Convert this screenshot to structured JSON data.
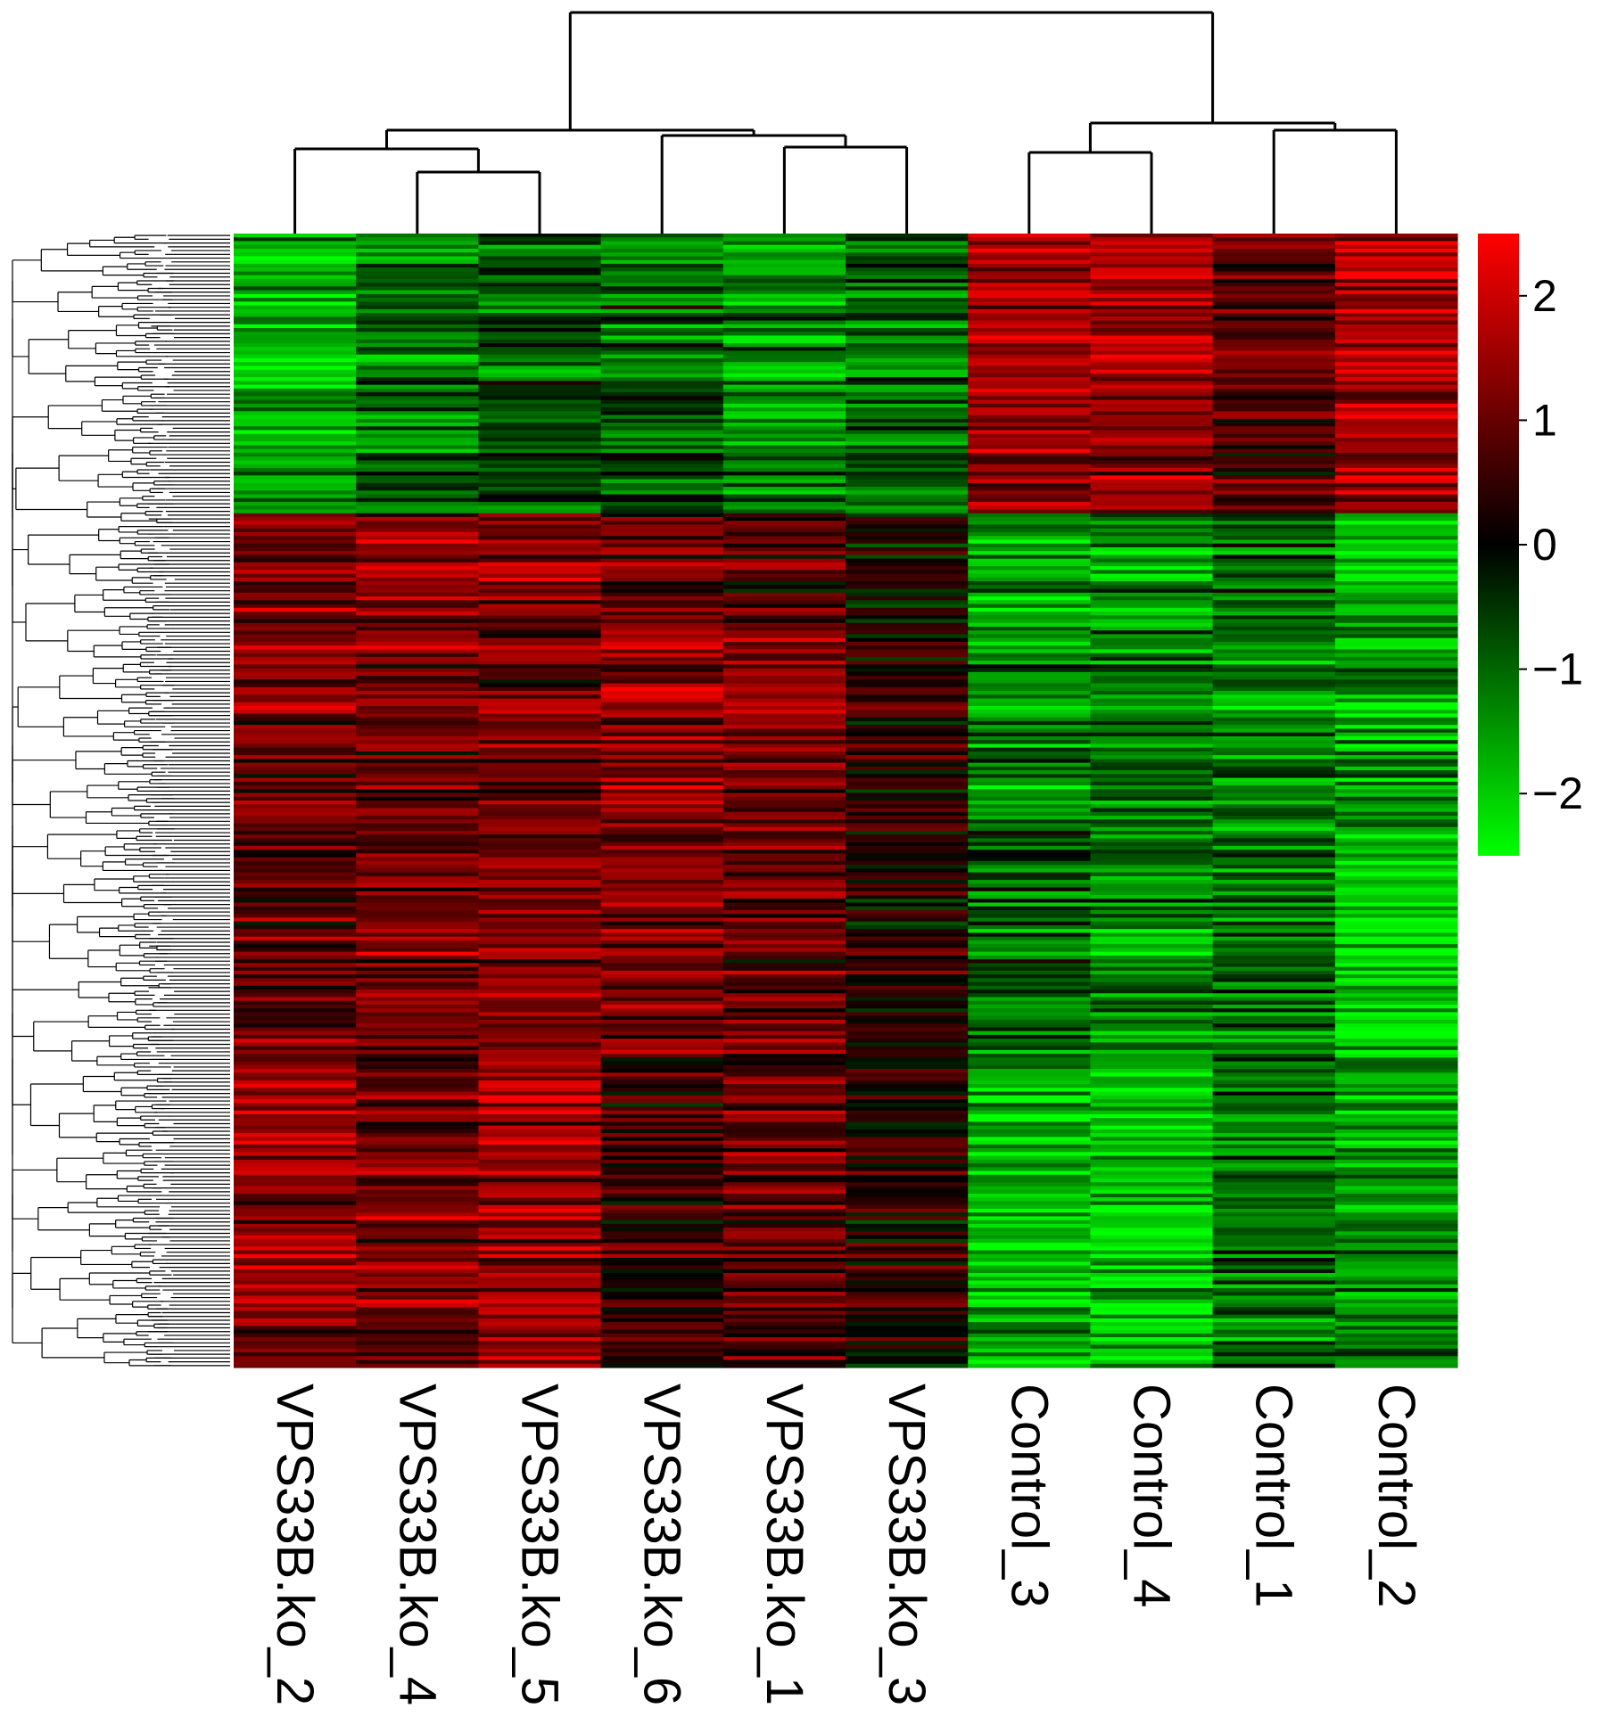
{
  "chart_data": {
    "type": "heatmap",
    "title": "",
    "xlabel": "",
    "ylabel": "",
    "columns": [
      "VPS33B.ko_2",
      "VPS33B.ko_4",
      "VPS33B.ko_5",
      "VPS33B.ko_6",
      "VPS33B.ko_1",
      "VPS33B.ko_3",
      "Control_3",
      "Control_4",
      "Control_1",
      "Control_2"
    ],
    "row_labels_shown": false,
    "color_scale": {
      "min": -2.5,
      "max": 2.5,
      "low_color": "#00ff00",
      "mid_color": "#000000",
      "high_color": "#ff0000",
      "ticks": [
        2,
        1,
        0,
        -1,
        -2
      ],
      "tick_labels": [
        "2",
        "1",
        "0",
        "−1",
        "−2"
      ]
    },
    "column_dendrogram": true,
    "row_dendrogram": true,
    "row_blocks": [
      {
        "block": "cluster_1_up_in_control",
        "row_share": 0.245,
        "mean_values": [
          -1.7,
          -1.1,
          -0.8,
          -0.9,
          -1.3,
          -0.9,
          1.5,
          1.6,
          0.8,
          1.7
        ]
      },
      {
        "block": "cluster_2_up_in_ko",
        "row_share": 0.1,
        "mean_values": [
          1.2,
          1.3,
          1.4,
          1.0,
          0.8,
          0.2,
          -1.7,
          -1.5,
          -1.0,
          -1.8
        ]
      },
      {
        "block": "cluster_3_up_in_ko",
        "row_share": 0.18,
        "mean_values": [
          1.1,
          1.1,
          1.1,
          1.4,
          1.2,
          0.4,
          -1.3,
          -1.2,
          -1.3,
          -1.5
        ]
      },
      {
        "block": "cluster_4_up_in_ko",
        "row_share": 0.2,
        "mean_values": [
          0.8,
          1.2,
          1.3,
          1.2,
          1.0,
          0.3,
          -0.9,
          -1.3,
          -1.1,
          -2.1
        ]
      },
      {
        "block": "cluster_5_up_in_ko",
        "row_share": 0.275,
        "mean_values": [
          1.4,
          1.1,
          1.5,
          0.5,
          0.9,
          0.4,
          -1.8,
          -1.9,
          -1.1,
          -1.5
        ]
      }
    ]
  }
}
